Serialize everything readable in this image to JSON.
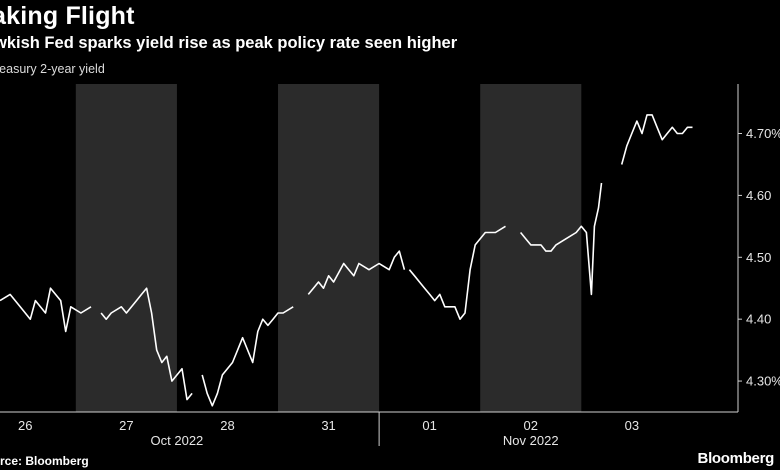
{
  "header": {
    "title": "aking Flight",
    "subtitle": "wkish Fed sparks yield rise as peak policy rate seen higher",
    "series_label": "reasury 2-year yield"
  },
  "footer": {
    "source": "rce: Bloomberg",
    "brand": "Bloomberg"
  },
  "colors": {
    "background": "#000000",
    "shade": "#2b2b2b",
    "line": "#ffffff",
    "axis": "#cfcfcf"
  },
  "chart_data": {
    "type": "line",
    "title": "aking Flight",
    "subtitle": "wkish Fed sparks yield rise as peak policy rate seen higher",
    "ylabel": "reasury 2-year yield",
    "y_axis_side": "right",
    "ylim": [
      4.25,
      4.78
    ],
    "yticks": [
      "4.30%",
      "4.40",
      "4.50",
      "4.60",
      "4.70%"
    ],
    "ytick_values": [
      4.3,
      4.4,
      4.5,
      4.6,
      4.7
    ],
    "x_unit": "trading day index (0 = Oct 26 session start)",
    "xlim": [
      -0.2,
      7.1
    ],
    "x_tick_labels": [
      "26",
      "27",
      "28",
      "31",
      "01",
      "02",
      "03"
    ],
    "x_tick_positions": [
      0.05,
      1.05,
      2.05,
      3.05,
      4.05,
      5.05,
      6.05
    ],
    "month_labels": [
      {
        "label": "Oct 2022",
        "position": 1.55
      },
      {
        "label": "Nov 2022",
        "position": 5.05
      }
    ],
    "month_divider_position": 3.55,
    "shaded_spans": [
      [
        0.55,
        1.55
      ],
      [
        2.55,
        3.55
      ],
      [
        4.55,
        5.55
      ]
    ],
    "segments": [
      {
        "points": [
          [
            -0.2,
            4.43
          ],
          [
            -0.1,
            4.44
          ],
          [
            0.0,
            4.42
          ],
          [
            0.1,
            4.4
          ],
          [
            0.15,
            4.43
          ],
          [
            0.25,
            4.41
          ],
          [
            0.3,
            4.45
          ],
          [
            0.4,
            4.43
          ],
          [
            0.45,
            4.38
          ],
          [
            0.5,
            4.42
          ],
          [
            0.6,
            4.41
          ],
          [
            0.7,
            4.42
          ]
        ]
      },
      {
        "points": [
          [
            0.8,
            4.41
          ],
          [
            0.85,
            4.4
          ],
          [
            0.9,
            4.41
          ],
          [
            1.0,
            4.42
          ],
          [
            1.05,
            4.41
          ],
          [
            1.15,
            4.43
          ],
          [
            1.2,
            4.44
          ],
          [
            1.25,
            4.45
          ],
          [
            1.3,
            4.41
          ],
          [
            1.35,
            4.35
          ],
          [
            1.4,
            4.33
          ],
          [
            1.45,
            4.34
          ],
          [
            1.5,
            4.3
          ],
          [
            1.6,
            4.32
          ],
          [
            1.65,
            4.27
          ],
          [
            1.7,
            4.28
          ]
        ]
      },
      {
        "points": [
          [
            1.8,
            4.31
          ],
          [
            1.85,
            4.28
          ],
          [
            1.9,
            4.26
          ],
          [
            1.95,
            4.28
          ],
          [
            2.0,
            4.31
          ],
          [
            2.1,
            4.33
          ],
          [
            2.15,
            4.35
          ],
          [
            2.2,
            4.37
          ],
          [
            2.3,
            4.33
          ],
          [
            2.35,
            4.38
          ],
          [
            2.4,
            4.4
          ],
          [
            2.45,
            4.39
          ],
          [
            2.5,
            4.4
          ],
          [
            2.55,
            4.41
          ],
          [
            2.6,
            4.41
          ],
          [
            2.7,
            4.42
          ]
        ]
      },
      {
        "points": [
          [
            2.85,
            4.44
          ],
          [
            2.9,
            4.45
          ],
          [
            2.95,
            4.46
          ],
          [
            3.0,
            4.45
          ],
          [
            3.05,
            4.47
          ],
          [
            3.1,
            4.46
          ],
          [
            3.2,
            4.49
          ],
          [
            3.25,
            4.48
          ],
          [
            3.3,
            4.47
          ],
          [
            3.35,
            4.49
          ],
          [
            3.45,
            4.48
          ],
          [
            3.55,
            4.49
          ],
          [
            3.65,
            4.48
          ],
          [
            3.7,
            4.5
          ],
          [
            3.75,
            4.51
          ],
          [
            3.8,
            4.48
          ]
        ]
      },
      {
        "points": [
          [
            3.85,
            4.48
          ],
          [
            3.9,
            4.47
          ],
          [
            3.95,
            4.46
          ],
          [
            4.0,
            4.45
          ],
          [
            4.05,
            4.44
          ],
          [
            4.1,
            4.43
          ],
          [
            4.15,
            4.44
          ],
          [
            4.2,
            4.42
          ],
          [
            4.3,
            4.42
          ],
          [
            4.35,
            4.4
          ],
          [
            4.4,
            4.41
          ],
          [
            4.45,
            4.48
          ],
          [
            4.5,
            4.52
          ],
          [
            4.55,
            4.53
          ],
          [
            4.6,
            4.54
          ],
          [
            4.7,
            4.54
          ],
          [
            4.8,
            4.55
          ]
        ]
      },
      {
        "points": [
          [
            4.95,
            4.54
          ],
          [
            5.0,
            4.53
          ],
          [
            5.05,
            4.52
          ],
          [
            5.15,
            4.52
          ],
          [
            5.2,
            4.51
          ],
          [
            5.25,
            4.51
          ],
          [
            5.3,
            4.52
          ],
          [
            5.4,
            4.53
          ],
          [
            5.5,
            4.54
          ],
          [
            5.55,
            4.55
          ],
          [
            5.6,
            4.54
          ],
          [
            5.65,
            4.44
          ],
          [
            5.68,
            4.55
          ],
          [
            5.72,
            4.58
          ],
          [
            5.75,
            4.62
          ]
        ]
      },
      {
        "points": [
          [
            5.95,
            4.65
          ],
          [
            6.0,
            4.68
          ],
          [
            6.05,
            4.7
          ],
          [
            6.1,
            4.72
          ],
          [
            6.15,
            4.7
          ],
          [
            6.2,
            4.73
          ],
          [
            6.25,
            4.73
          ],
          [
            6.3,
            4.71
          ],
          [
            6.35,
            4.69
          ],
          [
            6.4,
            4.7
          ],
          [
            6.45,
            4.71
          ],
          [
            6.5,
            4.7
          ],
          [
            6.55,
            4.7
          ],
          [
            6.6,
            4.71
          ],
          [
            6.65,
            4.71
          ]
        ]
      }
    ]
  }
}
